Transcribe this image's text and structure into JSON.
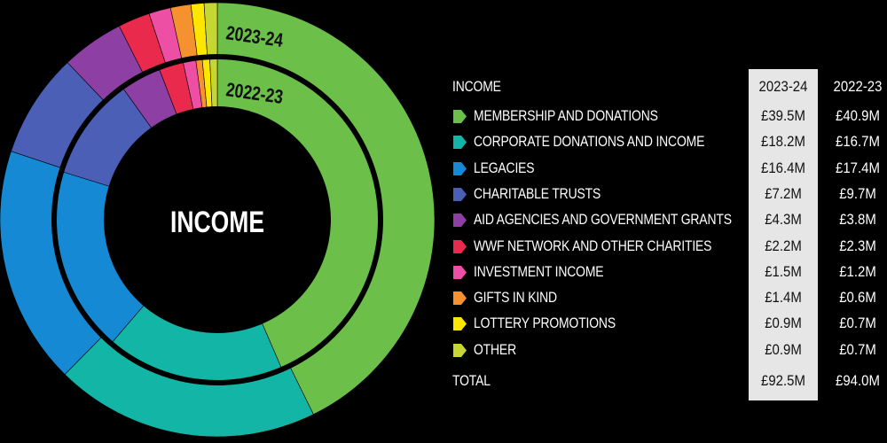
{
  "chart_data": {
    "type": "pie",
    "title": "INCOME",
    "series": [
      {
        "name": "2023-24",
        "values": [
          39.5,
          18.2,
          16.4,
          7.2,
          4.3,
          2.2,
          1.5,
          1.4,
          0.9,
          0.9
        ]
      },
      {
        "name": "2022-23",
        "values": [
          40.9,
          16.7,
          17.4,
          9.7,
          3.8,
          2.3,
          1.2,
          0.6,
          0.7,
          0.7
        ]
      }
    ],
    "categories": [
      "MEMBERSHIP AND DONATIONS",
      "CORPORATE DONATIONS AND INCOME",
      "LEGACIES",
      "CHARITABLE TRUSTS",
      "AID AGENCIES AND GOVERNMENT GRANTS",
      "WWF NETWORK AND OTHER CHARITIES",
      "INVESTMENT INCOME",
      "GIFTS IN KIND",
      "LOTTERY PROMOTIONS",
      "OTHER"
    ],
    "colors": [
      "#6cc04a",
      "#13b5a6",
      "#1689d4",
      "#4a5fb5",
      "#8d3fa3",
      "#ea2a4d",
      "#ec4fa3",
      "#f5922f",
      "#ffe600",
      "#c6d734"
    ]
  },
  "table": {
    "header": {
      "label": "INCOME",
      "cur": "2023-24",
      "prev": "2022-23"
    },
    "rows": [
      {
        "label": "MEMBERSHIP AND DONATIONS",
        "cur": "£39.5M",
        "prev": "£40.9M"
      },
      {
        "label": "CORPORATE DONATIONS AND INCOME",
        "cur": "£18.2M",
        "prev": "£16.7M"
      },
      {
        "label": "LEGACIES",
        "cur": "£16.4M",
        "prev": "£17.4M"
      },
      {
        "label": "CHARITABLE TRUSTS",
        "cur": "£7.2M",
        "prev": "£9.7M"
      },
      {
        "label": "AID AGENCIES AND GOVERNMENT GRANTS",
        "cur": "£4.3M",
        "prev": "£3.8M"
      },
      {
        "label": "WWF NETWORK AND OTHER CHARITIES",
        "cur": "£2.2M",
        "prev": "£2.3M"
      },
      {
        "label": "INVESTMENT INCOME",
        "cur": "£1.5M",
        "prev": "£1.2M"
      },
      {
        "label": "GIFTS IN KIND",
        "cur": "£1.4M",
        "prev": "£0.6M"
      },
      {
        "label": "LOTTERY PROMOTIONS",
        "cur": "£0.9M",
        "prev": "£0.7M"
      },
      {
        "label": "OTHER",
        "cur": "£0.9M",
        "prev": "£0.7M"
      }
    ],
    "total": {
      "label": "TOTAL",
      "cur": "£92.5M",
      "prev": "£94.0M"
    }
  },
  "rings": {
    "outer_label": "2023-24",
    "inner_label": "2022-23"
  }
}
